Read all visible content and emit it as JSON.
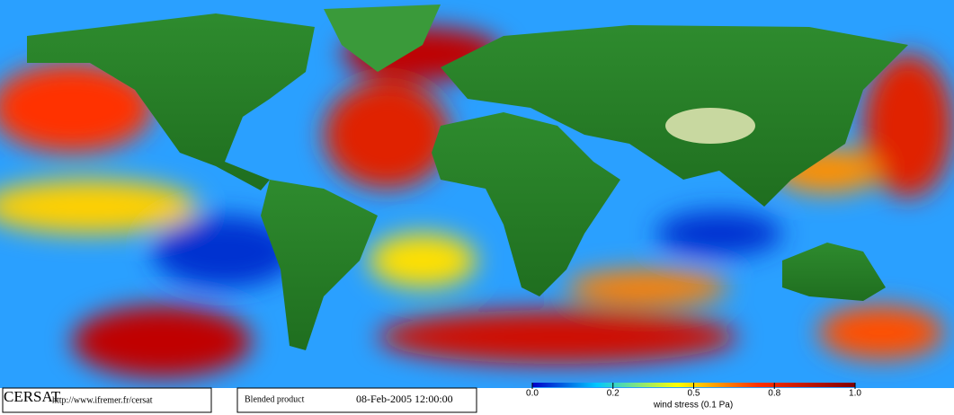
{
  "logo": "CERSAT",
  "url": "http://www.ifremer.fr/cersat",
  "product": "Blended product",
  "timestamp": "08-Feb-2005 12:00:00",
  "colorbar": {
    "label": "wind stress (0.1 Pa)",
    "ticks": [
      {
        "value": 0,
        "label": "0.0"
      },
      0.2,
      0.5,
      0.8,
      {
        "value": 1,
        "label": "1.0"
      }
    ]
  }
}
